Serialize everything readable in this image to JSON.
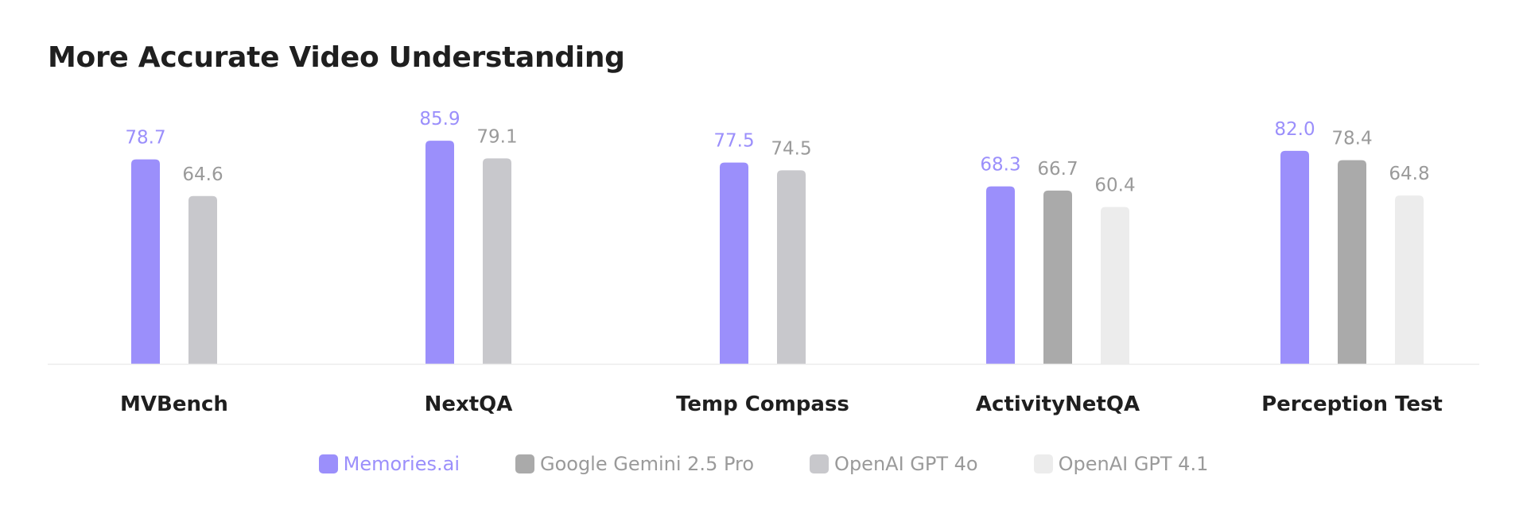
{
  "chart_data": {
    "type": "bar",
    "title": "More Accurate Video Understanding",
    "categories": [
      "MVBench",
      "NextQA",
      "Temp Compass",
      "ActivityNetQA",
      "Perception Test"
    ],
    "series": [
      {
        "name": "Memories.ai",
        "color": "#9b8ffb",
        "label_color": "#9b8ffb",
        "values": [
          78.7,
          85.9,
          77.5,
          68.3,
          82.0
        ]
      },
      {
        "name": "Google Gemini 2.5 Pro",
        "color": "#aaaaaa",
        "label_color": "#9a9a9a",
        "values": [
          null,
          null,
          null,
          66.7,
          78.4
        ]
      },
      {
        "name": "OpenAI GPT 4o",
        "color": "#c8c8cc",
        "label_color": "#9a9a9a",
        "values": [
          64.6,
          79.1,
          74.5,
          null,
          null
        ]
      },
      {
        "name": "OpenAI GPT 4.1",
        "color": "#ececec",
        "label_color": "#9a9a9a",
        "values": [
          null,
          null,
          null,
          60.4,
          64.8
        ]
      }
    ],
    "value_labels": [
      [
        "78.7",
        "85.9",
        "77.5",
        "68.3",
        "82.0"
      ],
      [
        "",
        "",
        "",
        "66.7",
        "78.4"
      ],
      [
        "64.6",
        "79.1",
        "74.5",
        "",
        ""
      ],
      [
        "",
        "",
        "",
        "60.4",
        "64.8"
      ]
    ],
    "legend_text_colors": [
      "#9b8ffb",
      "#9a9a9a",
      "#9a9a9a",
      "#9a9a9a"
    ],
    "legend_position": "bottom-center",
    "xlabel": "",
    "ylabel": "",
    "grid": false
  }
}
